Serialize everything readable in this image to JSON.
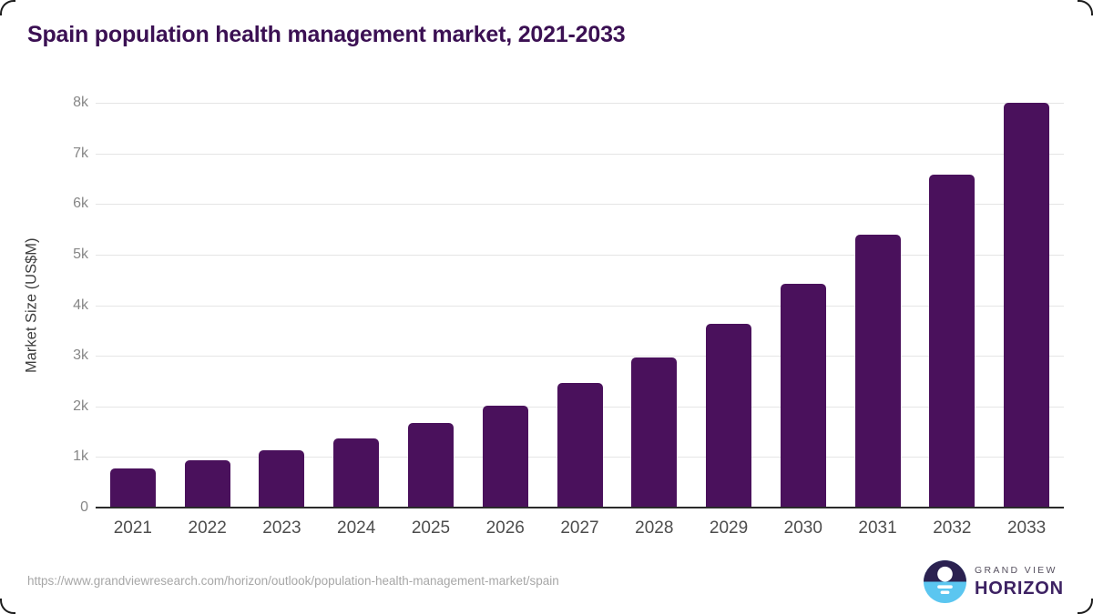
{
  "chart_data": {
    "type": "bar",
    "title": "Spain population health management market, 2021-2033",
    "xlabel": "",
    "ylabel": "Market Size (US$M)",
    "categories": [
      "2021",
      "2022",
      "2023",
      "2024",
      "2025",
      "2026",
      "2027",
      "2028",
      "2029",
      "2030",
      "2031",
      "2032",
      "2033"
    ],
    "values": [
      780,
      940,
      1140,
      1360,
      1665,
      2020,
      2460,
      2970,
      3630,
      4430,
      5400,
      6580,
      8000
    ],
    "ylim": [
      0,
      8000
    ],
    "ytick_values": [
      0,
      1000,
      2000,
      3000,
      4000,
      5000,
      6000,
      7000,
      8000
    ],
    "ytick_labels": [
      "0",
      "1k",
      "2k",
      "3k",
      "4k",
      "5k",
      "6k",
      "7k",
      "8k"
    ],
    "grid": true,
    "legend": "none",
    "bar_color": "#4a115c"
  },
  "colors": {
    "title": "#3b1053",
    "bar": "#4a115c",
    "gridline": "#e5e5e5",
    "axis_line": "#2b2b2b",
    "logo_dark_purple": "#2b2150",
    "logo_sky_blue": "#5bc6f0"
  },
  "footer": {
    "source_url": "https://www.grandviewresearch.com/horizon/outlook/population-health-management-market/spain",
    "logo": {
      "brand_top": "GRAND VIEW",
      "brand_bottom": "HORIZON"
    }
  }
}
